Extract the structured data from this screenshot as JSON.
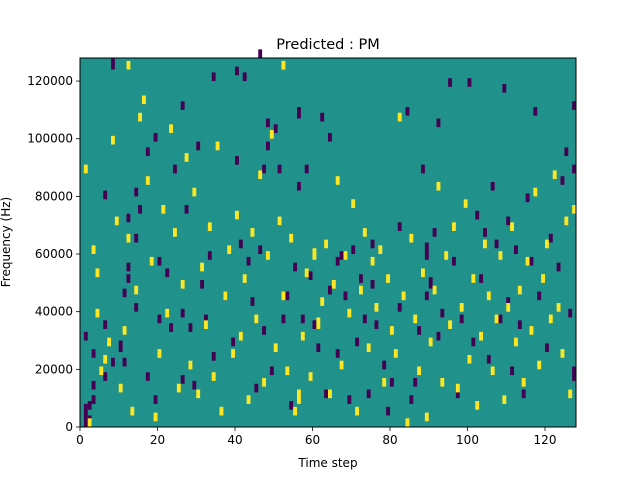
{
  "chart_data": {
    "type": "heatmap",
    "title": "Predicted : PM",
    "xlabel": "Time step",
    "ylabel": "Frequency (Hz)",
    "xlim": [
      0,
      128
    ],
    "ylim": [
      0,
      128000
    ],
    "x_ticks": [
      0,
      20,
      40,
      60,
      80,
      100,
      120
    ],
    "y_ticks": [
      0,
      20000,
      40000,
      60000,
      80000,
      100000,
      120000
    ],
    "x_tick_labels": [
      "0",
      "20",
      "40",
      "60",
      "80",
      "100",
      "120"
    ],
    "y_tick_labels": [
      "0",
      "20000",
      "40000",
      "60000",
      "80000",
      "100000",
      "120000"
    ],
    "colormap": "viridis",
    "value_levels": [
      0,
      1,
      2
    ],
    "background_value": 1,
    "colors": {
      "0": "#440154",
      "1": "#21918c",
      "2": "#fde725"
    },
    "time_bins": 128,
    "freq_bins": 128,
    "cells": {
      "low": [
        [
          1,
          0,
          8
        ],
        [
          2,
          0,
          4
        ],
        [
          2,
          6,
          3
        ],
        [
          3,
          8,
          3
        ],
        [
          3,
          13,
          3
        ],
        [
          3,
          24,
          3
        ],
        [
          1,
          30,
          3
        ],
        [
          6,
          34,
          3
        ],
        [
          6,
          79,
          3
        ],
        [
          8,
          124,
          4
        ],
        [
          6,
          16,
          3
        ],
        [
          8,
          21,
          3
        ],
        [
          10,
          26,
          4
        ],
        [
          11,
          21,
          3
        ],
        [
          11,
          45,
          3
        ],
        [
          12,
          50,
          3
        ],
        [
          12,
          54,
          3
        ],
        [
          14,
          80,
          3
        ],
        [
          14,
          40,
          3
        ],
        [
          14,
          64,
          3
        ],
        [
          15,
          74,
          3
        ],
        [
          17,
          16,
          3
        ],
        [
          17,
          94,
          3
        ],
        [
          19,
          99,
          3
        ],
        [
          19,
          8,
          3
        ],
        [
          20,
          36,
          3
        ],
        [
          20,
          56,
          3
        ],
        [
          22,
          52,
          3
        ],
        [
          23,
          33,
          3
        ],
        [
          24,
          88,
          3
        ],
        [
          26,
          15,
          3
        ],
        [
          26,
          38,
          3
        ],
        [
          26,
          110,
          3
        ],
        [
          27,
          74,
          3
        ],
        [
          28,
          33,
          3
        ],
        [
          29,
          13,
          3
        ],
        [
          31,
          48,
          3
        ],
        [
          32,
          36,
          3
        ],
        [
          33,
          58,
          3
        ],
        [
          34,
          23,
          3
        ],
        [
          34,
          120,
          3
        ],
        [
          37,
          44,
          3
        ],
        [
          39,
          28,
          3
        ],
        [
          40,
          91,
          3
        ],
        [
          40,
          122,
          3
        ],
        [
          41,
          62,
          3
        ],
        [
          42,
          120,
          3
        ],
        [
          43,
          56,
          3
        ],
        [
          44,
          42,
          3
        ],
        [
          45,
          12,
          3
        ],
        [
          46,
          60,
          3
        ],
        [
          46,
          128,
          3
        ],
        [
          47,
          32,
          3
        ],
        [
          47,
          88,
          3
        ],
        [
          48,
          96,
          3
        ],
        [
          48,
          104,
          3
        ],
        [
          49,
          18,
          3
        ],
        [
          50,
          102,
          3
        ],
        [
          51,
          88,
          3
        ],
        [
          52,
          36,
          3
        ],
        [
          53,
          44,
          3
        ],
        [
          54,
          6,
          3
        ],
        [
          55,
          54,
          3
        ],
        [
          56,
          82,
          3
        ],
        [
          56,
          107,
          4
        ],
        [
          57,
          36,
          3
        ],
        [
          59,
          51,
          3
        ],
        [
          60,
          34,
          3
        ],
        [
          61,
          26,
          3
        ],
        [
          62,
          106,
          3
        ],
        [
          63,
          10,
          3
        ],
        [
          64,
          46,
          3
        ],
        [
          64,
          99,
          3
        ],
        [
          66,
          24,
          3
        ],
        [
          67,
          58,
          3
        ],
        [
          68,
          44,
          3
        ],
        [
          69,
          8,
          3
        ],
        [
          70,
          60,
          3
        ],
        [
          71,
          28,
          3
        ],
        [
          72,
          50,
          3
        ],
        [
          73,
          36,
          3
        ],
        [
          74,
          10,
          3
        ],
        [
          75,
          48,
          3
        ],
        [
          75,
          62,
          3
        ],
        [
          76,
          34,
          3
        ],
        [
          78,
          20,
          3
        ],
        [
          79,
          4,
          3
        ],
        [
          80,
          14,
          3
        ],
        [
          82,
          68,
          3
        ],
        [
          82,
          40,
          3
        ],
        [
          85,
          8,
          3
        ],
        [
          86,
          14,
          3
        ],
        [
          87,
          32,
          3
        ],
        [
          88,
          88,
          3
        ],
        [
          89,
          44,
          3
        ],
        [
          89,
          58,
          6
        ],
        [
          90,
          48,
          4
        ],
        [
          91,
          66,
          3
        ],
        [
          92,
          30,
          3
        ],
        [
          92,
          104,
          3
        ],
        [
          93,
          38,
          3
        ],
        [
          95,
          118,
          3
        ],
        [
          96,
          56,
          3
        ],
        [
          97,
          10,
          3
        ],
        [
          98,
          36,
          3
        ],
        [
          99,
          76,
          3
        ],
        [
          100,
          118,
          3
        ],
        [
          101,
          28,
          3
        ],
        [
          102,
          72,
          3
        ],
        [
          103,
          50,
          3
        ],
        [
          104,
          66,
          3
        ],
        [
          105,
          22,
          3
        ],
        [
          106,
          82,
          3
        ],
        [
          107,
          62,
          3
        ],
        [
          108,
          36,
          3
        ],
        [
          109,
          116,
          3
        ],
        [
          110,
          42,
          3
        ],
        [
          110,
          70,
          3
        ],
        [
          111,
          18,
          3
        ],
        [
          112,
          60,
          3
        ],
        [
          113,
          34,
          3
        ],
        [
          114,
          10,
          3
        ],
        [
          115,
          78,
          3
        ],
        [
          116,
          56,
          3
        ],
        [
          117,
          108,
          3
        ],
        [
          118,
          44,
          3
        ],
        [
          120,
          26,
          3
        ],
        [
          121,
          64,
          3
        ],
        [
          123,
          54,
          3
        ],
        [
          124,
          84,
          3
        ],
        [
          125,
          94,
          3
        ],
        [
          126,
          38,
          3
        ],
        [
          127,
          16,
          5
        ],
        [
          127,
          88,
          3
        ],
        [
          127,
          110,
          3
        ],
        [
          12,
          71,
          3
        ],
        [
          30,
          96,
          3
        ],
        [
          58,
          88,
          3
        ],
        [
          66,
          56,
          3
        ],
        [
          84,
          108,
          3
        ]
      ],
      "high": [
        [
          1,
          88,
          3
        ],
        [
          2,
          0,
          3
        ],
        [
          3,
          60,
          3
        ],
        [
          4,
          52,
          3
        ],
        [
          4,
          38,
          3
        ],
        [
          5,
          18,
          3
        ],
        [
          6,
          22,
          3
        ],
        [
          7,
          28,
          3
        ],
        [
          8,
          98,
          3
        ],
        [
          9,
          70,
          3
        ],
        [
          10,
          12,
          3
        ],
        [
          11,
          32,
          3
        ],
        [
          12,
          64,
          3
        ],
        [
          13,
          4,
          3
        ],
        [
          14,
          46,
          3
        ],
        [
          15,
          106,
          3
        ],
        [
          16,
          112,
          3
        ],
        [
          17,
          84,
          3
        ],
        [
          18,
          56,
          3
        ],
        [
          19,
          2,
          3
        ],
        [
          20,
          24,
          3
        ],
        [
          21,
          74,
          3
        ],
        [
          22,
          38,
          3
        ],
        [
          23,
          102,
          3
        ],
        [
          24,
          66,
          3
        ],
        [
          25,
          12,
          3
        ],
        [
          26,
          48,
          3
        ],
        [
          27,
          92,
          3
        ],
        [
          28,
          20,
          3
        ],
        [
          29,
          80,
          3
        ],
        [
          30,
          10,
          3
        ],
        [
          31,
          54,
          3
        ],
        [
          32,
          34,
          3
        ],
        [
          33,
          68,
          3
        ],
        [
          34,
          16,
          3
        ],
        [
          35,
          96,
          3
        ],
        [
          36,
          4,
          3
        ],
        [
          37,
          44,
          3
        ],
        [
          38,
          60,
          3
        ],
        [
          39,
          24,
          3
        ],
        [
          40,
          72,
          3
        ],
        [
          41,
          30,
          3
        ],
        [
          42,
          50,
          3
        ],
        [
          43,
          8,
          3
        ],
        [
          44,
          66,
          3
        ],
        [
          45,
          36,
          3
        ],
        [
          46,
          86,
          3
        ],
        [
          47,
          14,
          3
        ],
        [
          48,
          58,
          3
        ],
        [
          49,
          100,
          3
        ],
        [
          50,
          26,
          3
        ],
        [
          51,
          70,
          3
        ],
        [
          52,
          44,
          3
        ],
        [
          53,
          18,
          3
        ],
        [
          54,
          64,
          3
        ],
        [
          55,
          4,
          3
        ],
        [
          56,
          8,
          5
        ],
        [
          57,
          30,
          3
        ],
        [
          58,
          52,
          3
        ],
        [
          59,
          16,
          3
        ],
        [
          60,
          58,
          4
        ],
        [
          61,
          34,
          4
        ],
        [
          62,
          42,
          3
        ],
        [
          63,
          62,
          3
        ],
        [
          64,
          10,
          3
        ],
        [
          65,
          48,
          3
        ],
        [
          66,
          84,
          3
        ],
        [
          67,
          20,
          3
        ],
        [
          68,
          58,
          3
        ],
        [
          69,
          38,
          3
        ],
        [
          70,
          76,
          3
        ],
        [
          71,
          4,
          3
        ],
        [
          72,
          46,
          3
        ],
        [
          73,
          66,
          3
        ],
        [
          74,
          26,
          3
        ],
        [
          75,
          56,
          3
        ],
        [
          76,
          40,
          3
        ],
        [
          77,
          60,
          3
        ],
        [
          78,
          14,
          3
        ],
        [
          79,
          50,
          3
        ],
        [
          80,
          32,
          3
        ],
        [
          81,
          24,
          3
        ],
        [
          82,
          106,
          3
        ],
        [
          83,
          44,
          3
        ],
        [
          84,
          0,
          3
        ],
        [
          85,
          64,
          3
        ],
        [
          86,
          36,
          3
        ],
        [
          87,
          18,
          3
        ],
        [
          88,
          52,
          3
        ],
        [
          89,
          2,
          3
        ],
        [
          90,
          28,
          3
        ],
        [
          91,
          46,
          3
        ],
        [
          92,
          82,
          3
        ],
        [
          93,
          14,
          3
        ],
        [
          94,
          58,
          3
        ],
        [
          95,
          34,
          3
        ],
        [
          96,
          68,
          3
        ],
        [
          97,
          12,
          3
        ],
        [
          98,
          40,
          3
        ],
        [
          99,
          76,
          3
        ],
        [
          100,
          22,
          3
        ],
        [
          101,
          50,
          3
        ],
        [
          102,
          6,
          3
        ],
        [
          103,
          30,
          3
        ],
        [
          104,
          62,
          3
        ],
        [
          105,
          44,
          3
        ],
        [
          106,
          18,
          3
        ],
        [
          107,
          36,
          3
        ],
        [
          108,
          58,
          3
        ],
        [
          109,
          8,
          3
        ],
        [
          110,
          40,
          3
        ],
        [
          111,
          68,
          3
        ],
        [
          112,
          28,
          3
        ],
        [
          113,
          46,
          3
        ],
        [
          114,
          14,
          3
        ],
        [
          115,
          56,
          3
        ],
        [
          116,
          32,
          3
        ],
        [
          117,
          80,
          3
        ],
        [
          118,
          20,
          3
        ],
        [
          119,
          50,
          3
        ],
        [
          120,
          62,
          3
        ],
        [
          121,
          36,
          3
        ],
        [
          122,
          86,
          3
        ],
        [
          123,
          40,
          3
        ],
        [
          124,
          24,
          3
        ],
        [
          125,
          70,
          3
        ],
        [
          126,
          10,
          3
        ],
        [
          127,
          74,
          3
        ],
        [
          12,
          124,
          3
        ],
        [
          52,
          124,
          3
        ]
      ]
    }
  }
}
